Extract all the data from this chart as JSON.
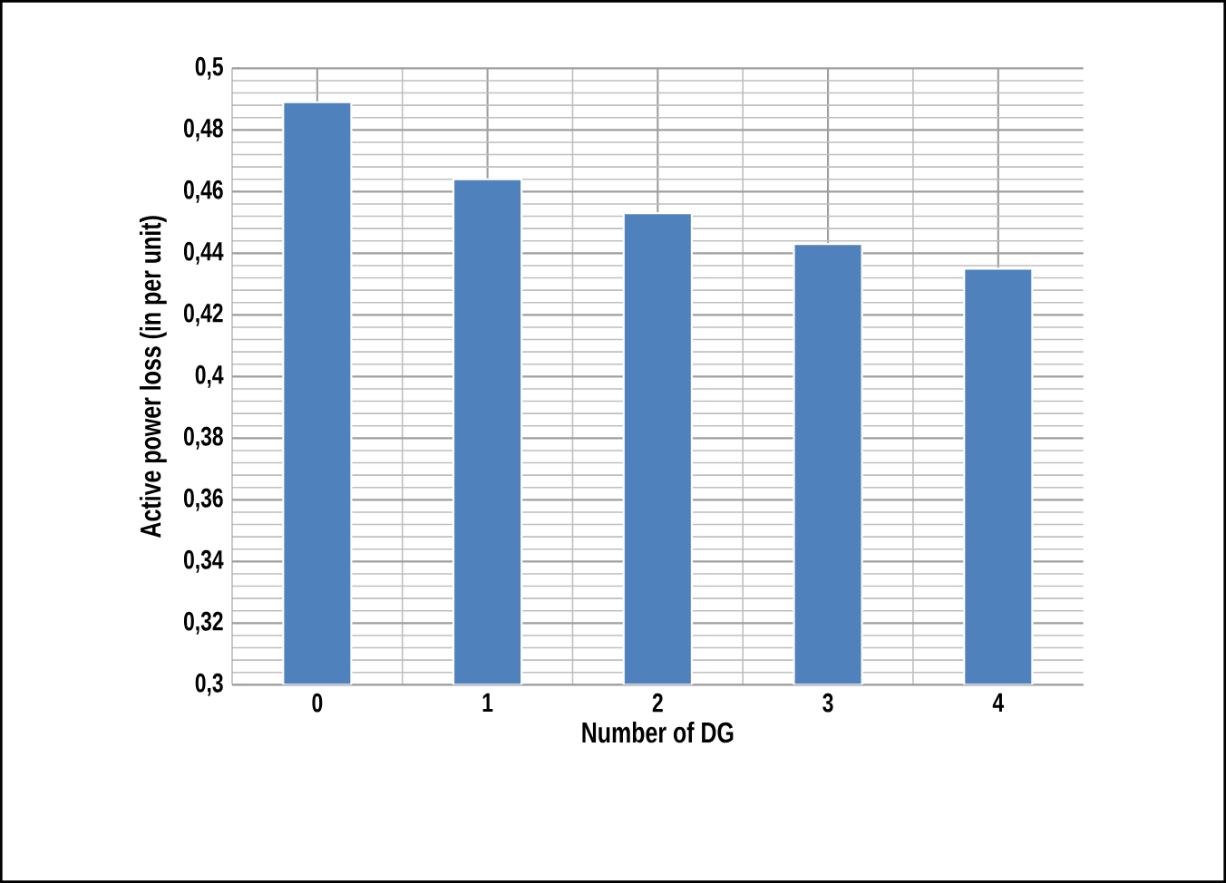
{
  "chart_data": {
    "type": "bar",
    "xlabel": "Number of DG",
    "ylabel": "Active power loss (in per unit)",
    "categories": [
      "0",
      "1",
      "2",
      "3",
      "4"
    ],
    "values": [
      0.489,
      0.464,
      0.453,
      0.443,
      0.435
    ],
    "color": "#4f81bd",
    "ylim": [
      0.3,
      0.5
    ],
    "yticks": [
      {
        "value": 0.3,
        "label": "0,3"
      },
      {
        "value": 0.32,
        "label": "0,32"
      },
      {
        "value": 0.34,
        "label": "0,34"
      },
      {
        "value": 0.36,
        "label": "0,36"
      },
      {
        "value": 0.38,
        "label": "0,38"
      },
      {
        "value": 0.4,
        "label": "0,4"
      },
      {
        "value": 0.42,
        "label": "0,42"
      },
      {
        "value": 0.44,
        "label": "0,44"
      },
      {
        "value": 0.46,
        "label": "0,46"
      },
      {
        "value": 0.48,
        "label": "0,48"
      },
      {
        "value": 0.5,
        "label": "0,5"
      }
    ],
    "grid": true
  }
}
